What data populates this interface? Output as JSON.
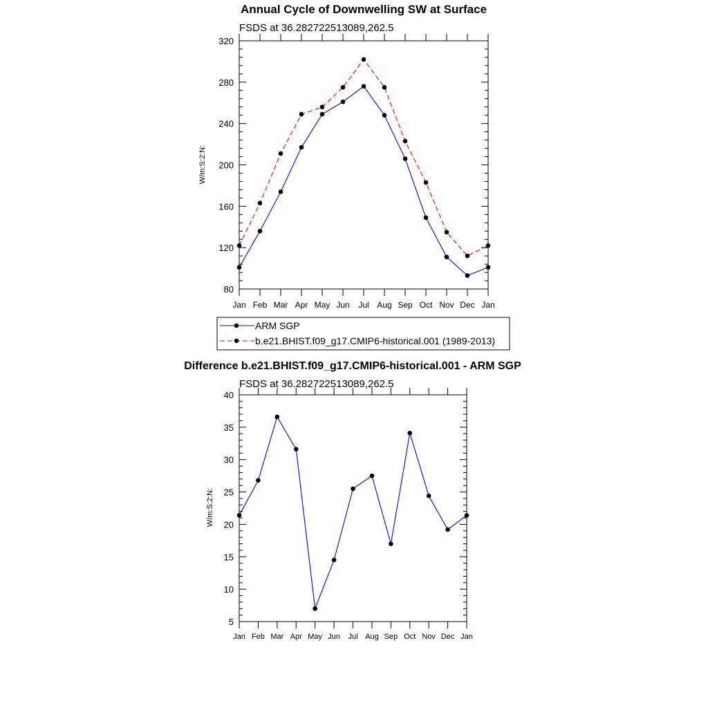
{
  "colors": {
    "series_obs": "#0000ff",
    "series_model": "#ff0000",
    "marker": "#000000",
    "axis": "#000000",
    "background": "#ffffff"
  },
  "chart_data": [
    {
      "id": "annual-cycle",
      "type": "line",
      "title": "Annual Cycle of Downwelling SW at Surface",
      "subtitle": "FSDS at 36.282722513089,262.5",
      "xlabel": "",
      "ylabel": "W/m:S:2:N:",
      "categories": [
        "Jan",
        "Feb",
        "Mar",
        "Apr",
        "May",
        "Jun",
        "Jul",
        "Aug",
        "Sep",
        "Oct",
        "Nov",
        "Dec",
        "Jan"
      ],
      "ylim": [
        80,
        320
      ],
      "yticks": [
        80,
        120,
        160,
        200,
        240,
        280,
        320
      ],
      "grid": false,
      "legend_placement": "bottom",
      "series": [
        {
          "name": "ARM SGP",
          "style": "solid",
          "color": "#0000ff",
          "values": [
            101,
            136,
            174,
            217,
            249,
            261,
            276,
            248,
            206,
            149,
            111,
            93,
            101
          ]
        },
        {
          "name": "b.e21.BHIST.f09_g17.CMIP6-historical.001 (1989-2013)",
          "style": "dashed",
          "color": "#ff0000",
          "values": [
            122,
            163,
            211,
            249,
            256,
            275,
            302,
            275,
            223,
            183,
            135,
            112,
            122
          ]
        }
      ]
    },
    {
      "id": "difference",
      "type": "line",
      "title": "Difference b.e21.BHIST.f09_g17.CMIP6-historical.001 - ARM SGP",
      "subtitle": "FSDS at 36.282722513089,262.5",
      "xlabel": "",
      "ylabel": "W/m:S:2:N:",
      "categories": [
        "Jan",
        "Feb",
        "Mar",
        "Apr",
        "May",
        "Jun",
        "Jul",
        "Aug",
        "Sep",
        "Oct",
        "Nov",
        "Dec",
        "Jan"
      ],
      "ylim": [
        5,
        40
      ],
      "yticks": [
        5,
        10,
        15,
        20,
        25,
        30,
        35,
        40
      ],
      "grid": false,
      "series": [
        {
          "style": "solid",
          "color": "#0000ff",
          "values": [
            21.4,
            26.8,
            36.6,
            31.6,
            7.0,
            14.5,
            25.5,
            27.5,
            17.0,
            34.1,
            24.4,
            19.2,
            21.4
          ]
        }
      ]
    }
  ]
}
